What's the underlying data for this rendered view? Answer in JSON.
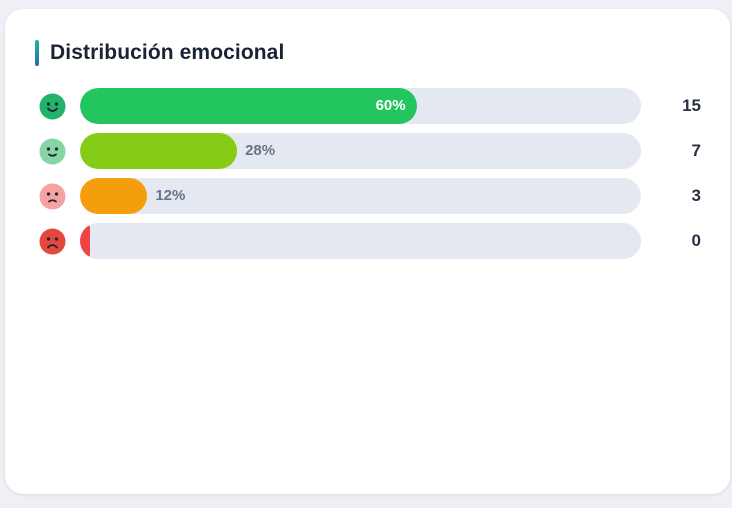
{
  "card": {
    "title": "Distribución emocional"
  },
  "chart_data": {
    "type": "bar",
    "orientation": "horizontal",
    "title": "Distribución emocional",
    "categories": [
      "muy-feliz",
      "feliz",
      "triste",
      "muy-triste"
    ],
    "icons": [
      "very-happy-face-icon",
      "happy-face-icon",
      "sad-face-icon",
      "very-sad-face-icon"
    ],
    "values": [
      15,
      7,
      3,
      0
    ],
    "percent_labels": [
      "60%",
      "28%",
      "12%",
      ""
    ],
    "percents": [
      60,
      28,
      12,
      0
    ],
    "colors": [
      "#22c55e",
      "#84cc16",
      "#f59e0b",
      "#ef4444"
    ],
    "face_colors": [
      "#22b36b",
      "#86d6a4",
      "#f4a4a0",
      "#e4473c"
    ],
    "xlim": [
      0,
      100
    ]
  }
}
